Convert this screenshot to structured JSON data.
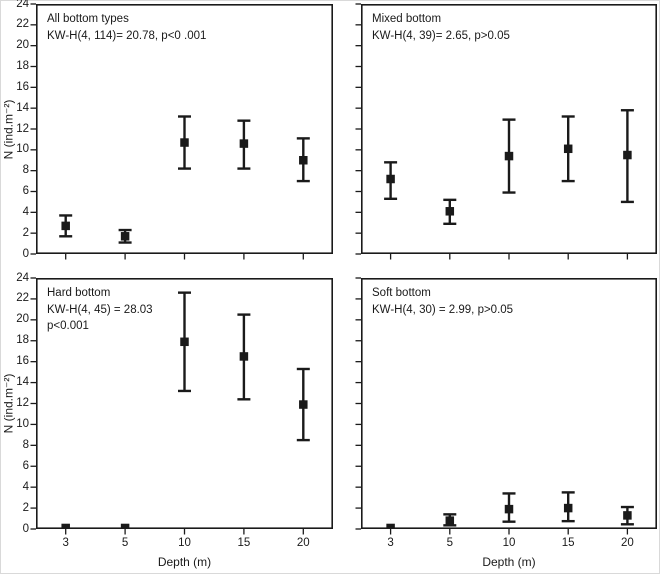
{
  "figure": {
    "x_axis_label": "Depth (m)",
    "y_axis_label": "N (ind.m⁻²)",
    "ink_color": "#1a1a1a",
    "background": "#ffffff"
  },
  "chart_data": [
    {
      "type": "scatter",
      "title": "All bottom types",
      "stats_lines": [
        "KW-H(4, 114)= 20.78, p<0 .001"
      ],
      "xlabel": "Depth (m)",
      "ylabel": "N (ind.m⁻²)",
      "x_categories": [
        "3",
        "5",
        "10",
        "15",
        "20"
      ],
      "ylim": [
        0,
        24
      ],
      "y_tick_step": 2,
      "grid": false,
      "legend": "none",
      "points": [
        {
          "x": "3",
          "mean": 2.7,
          "lo": 1.7,
          "hi": 3.7
        },
        {
          "x": "5",
          "mean": 1.7,
          "lo": 1.1,
          "hi": 2.3
        },
        {
          "x": "10",
          "mean": 10.7,
          "lo": 8.2,
          "hi": 13.2
        },
        {
          "x": "15",
          "mean": 10.6,
          "lo": 8.2,
          "hi": 12.8
        },
        {
          "x": "20",
          "mean": 9.0,
          "lo": 7.0,
          "hi": 11.1
        }
      ]
    },
    {
      "type": "scatter",
      "title": "Mixed bottom",
      "stats_lines": [
        "KW-H(4, 39)= 2.65, p>0.05"
      ],
      "xlabel": "Depth (m)",
      "ylabel": "N (ind.m⁻²)",
      "x_categories": [
        "3",
        "5",
        "10",
        "15",
        "20"
      ],
      "ylim": [
        0,
        24
      ],
      "y_tick_step": 2,
      "grid": false,
      "legend": "none",
      "points": [
        {
          "x": "3",
          "mean": 7.2,
          "lo": 5.3,
          "hi": 8.8
        },
        {
          "x": "5",
          "mean": 4.1,
          "lo": 2.9,
          "hi": 5.2
        },
        {
          "x": "10",
          "mean": 9.4,
          "lo": 5.9,
          "hi": 12.9
        },
        {
          "x": "15",
          "mean": 10.1,
          "lo": 7.0,
          "hi": 13.2
        },
        {
          "x": "20",
          "mean": 9.5,
          "lo": 5.0,
          "hi": 13.8
        }
      ]
    },
    {
      "type": "scatter",
      "title": "Hard bottom",
      "stats_lines": [
        "KW-H(4, 45) = 28.03",
        "p<0.001"
      ],
      "xlabel": "Depth (m)",
      "ylabel": "N (ind.m⁻²)",
      "x_categories": [
        "3",
        "5",
        "10",
        "15",
        "20"
      ],
      "ylim": [
        0,
        24
      ],
      "y_tick_step": 2,
      "grid": false,
      "legend": "none",
      "points": [
        {
          "x": "3",
          "mean": 0.1,
          "lo": 0.1,
          "hi": 0.1
        },
        {
          "x": "5",
          "mean": 0.1,
          "lo": 0.1,
          "hi": 0.1
        },
        {
          "x": "10",
          "mean": 17.9,
          "lo": 13.2,
          "hi": 22.6
        },
        {
          "x": "15",
          "mean": 16.5,
          "lo": 12.4,
          "hi": 20.5
        },
        {
          "x": "20",
          "mean": 11.9,
          "lo": 8.5,
          "hi": 15.3
        }
      ]
    },
    {
      "type": "scatter",
      "title": "Soft bottom",
      "stats_lines": [
        "KW-H(4, 30) = 2.99, p>0.05"
      ],
      "xlabel": "Depth (m)",
      "ylabel": "N (ind.m⁻²)",
      "x_categories": [
        "3",
        "5",
        "10",
        "15",
        "20"
      ],
      "ylim": [
        0,
        24
      ],
      "y_tick_step": 2,
      "grid": false,
      "legend": "none",
      "points": [
        {
          "x": "3",
          "mean": 0.1,
          "lo": 0.1,
          "hi": 0.1
        },
        {
          "x": "5",
          "mean": 0.8,
          "lo": 0.35,
          "hi": 1.4
        },
        {
          "x": "10",
          "mean": 1.9,
          "lo": 0.7,
          "hi": 3.4
        },
        {
          "x": "15",
          "mean": 2.0,
          "lo": 0.75,
          "hi": 3.5
        },
        {
          "x": "20",
          "mean": 1.3,
          "lo": 0.45,
          "hi": 2.1
        }
      ]
    }
  ]
}
